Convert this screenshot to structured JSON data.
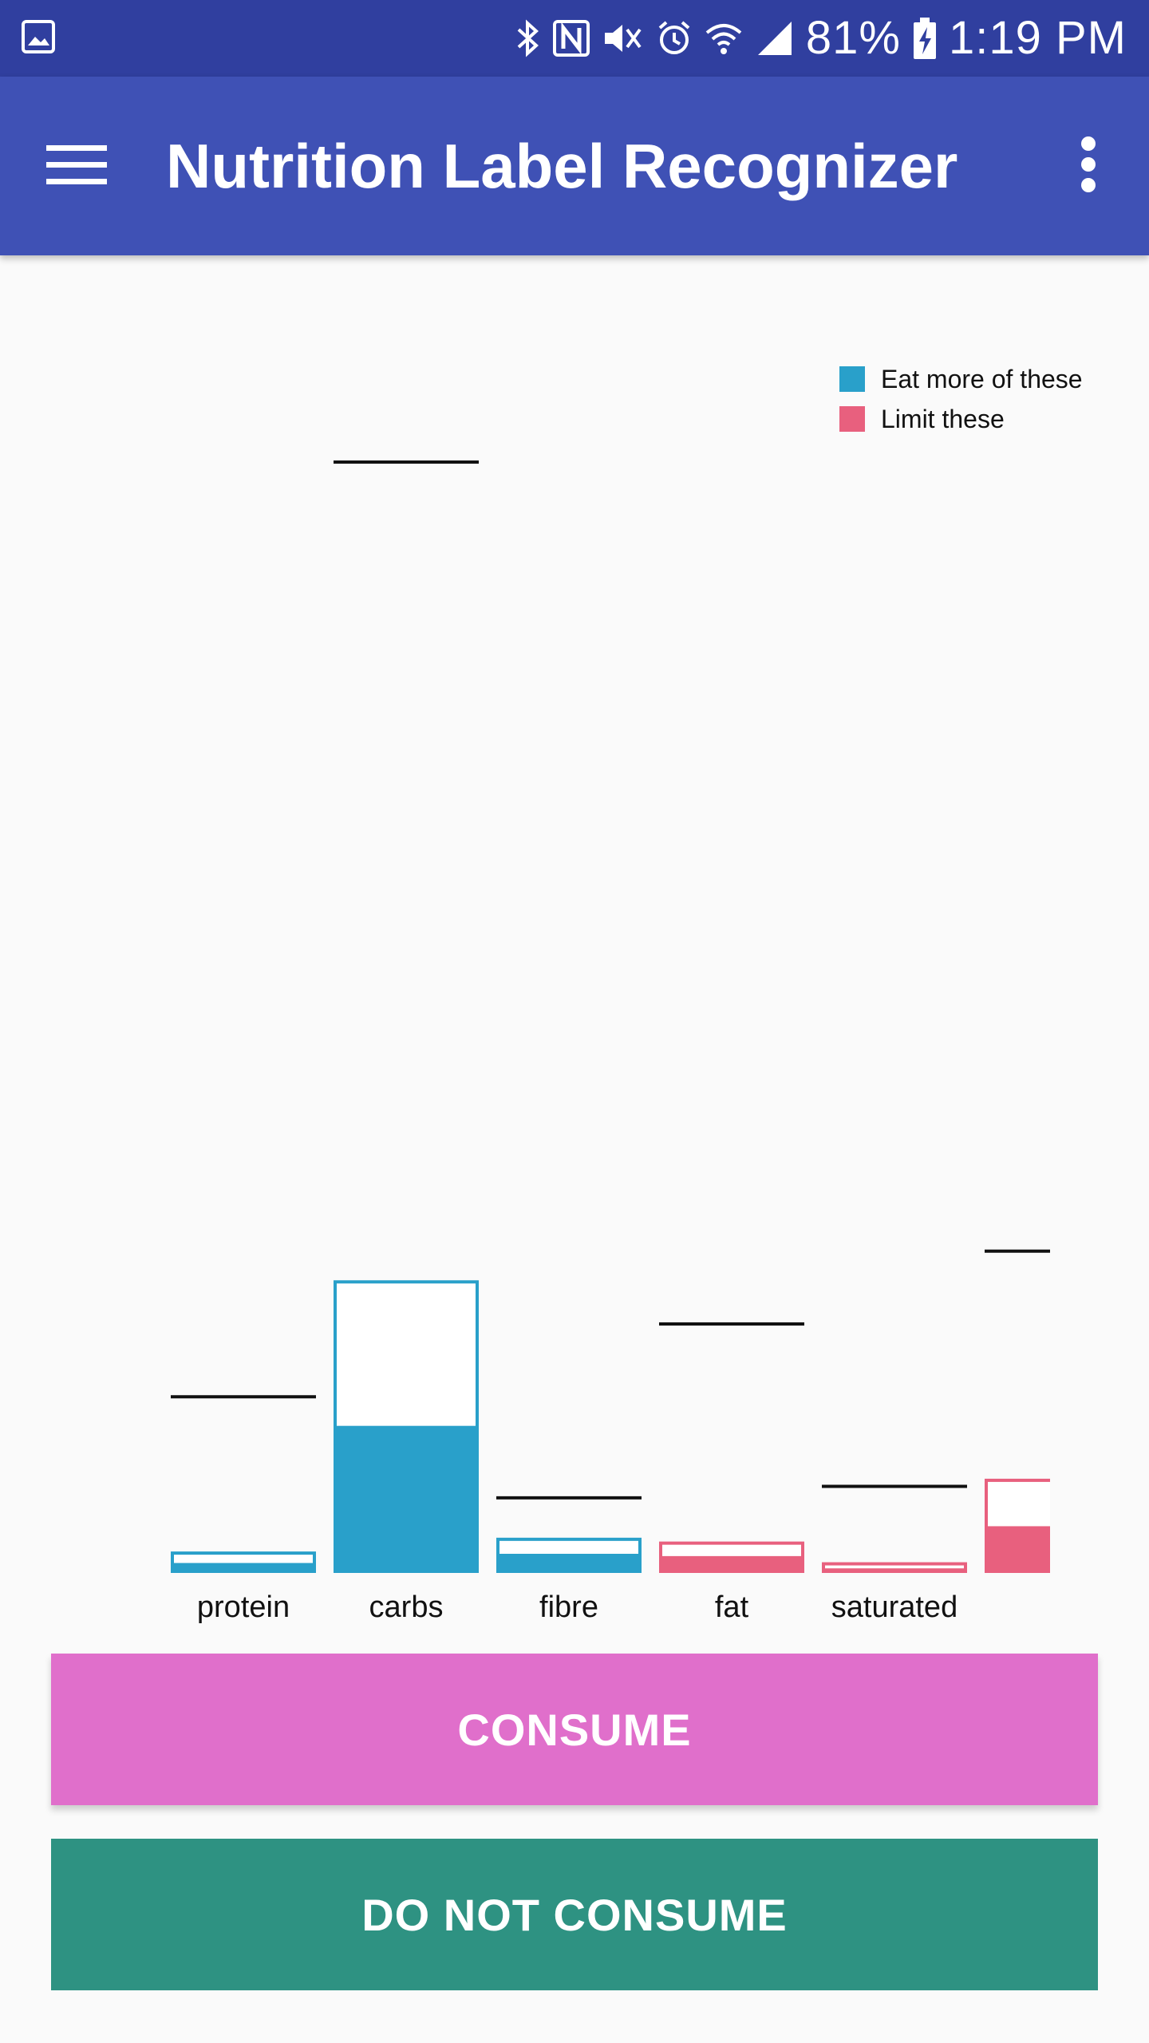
{
  "status_bar": {
    "battery": "81%",
    "time": "1:19 PM",
    "icons": [
      "image-icon",
      "bluetooth-icon",
      "nfc-icon",
      "mute-icon",
      "alarm-icon",
      "wifi-icon",
      "signal-icon",
      "battery-charging-icon"
    ]
  },
  "app_bar": {
    "title": "Nutrition Label Recognizer",
    "menu_icon": "hamburger-menu-icon",
    "overflow_icon": "more-vert-icon"
  },
  "chart_data": {
    "type": "bar",
    "categories": [
      "protein",
      "carbs",
      "fibre",
      "fat",
      "saturated",
      ""
    ],
    "legend": [
      {
        "label": "Eat more of these",
        "color": "#29a0ca"
      },
      {
        "label": "Limit these",
        "color": "#e8607e"
      }
    ],
    "legend_position": "top-right",
    "colors": {
      "more": "#29a0ca",
      "limit": "#e8607e"
    },
    "ylim": [
      0,
      100
    ],
    "grid": false,
    "bars": [
      {
        "category": "protein",
        "group": "more",
        "total": 2.8,
        "filled": 1.3,
        "target": 23.0
      },
      {
        "category": "carbs",
        "group": "more",
        "total": 38.2,
        "filled": 19.2,
        "target": 145.0
      },
      {
        "category": "fibre",
        "group": "more",
        "total": 4.6,
        "filled": 2.5,
        "target": 9.8
      },
      {
        "category": "fat",
        "group": "limit",
        "total": 4.1,
        "filled": 2.2,
        "target": 32.5
      },
      {
        "category": "saturated",
        "group": "limit",
        "total": 1.4,
        "filled": 0.6,
        "target": 11.3
      },
      {
        "category": "",
        "group": "limit",
        "total": 12.3,
        "filled": 6.1,
        "target": 42.0
      }
    ]
  },
  "buttons": {
    "consume": "CONSUME",
    "do_not_consume": "DO NOT CONSUME"
  }
}
